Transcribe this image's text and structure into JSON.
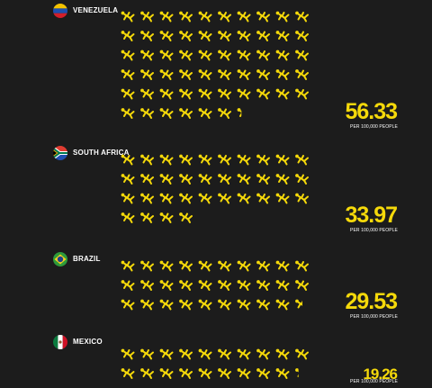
{
  "accent_color": "#f5d90a",
  "background_color": "#1c1c1c",
  "icon_name": "body-icon",
  "unit_label": "PER 100,000 PEOPLE",
  "chart_data": {
    "type": "pictograph",
    "icons_per_unit": 1,
    "categories": [
      "VENEZUELA",
      "SOUTH AFRICA",
      "BRAZIL",
      "MEXICO"
    ],
    "values": [
      56.33,
      33.97,
      29.53,
      19.26
    ],
    "value_labels": [
      "56.33",
      "33.97",
      "29.53",
      "19.26"
    ],
    "series": [
      {
        "values": [
          56.33,
          33.97,
          29.53,
          19.26
        ]
      }
    ]
  }
}
